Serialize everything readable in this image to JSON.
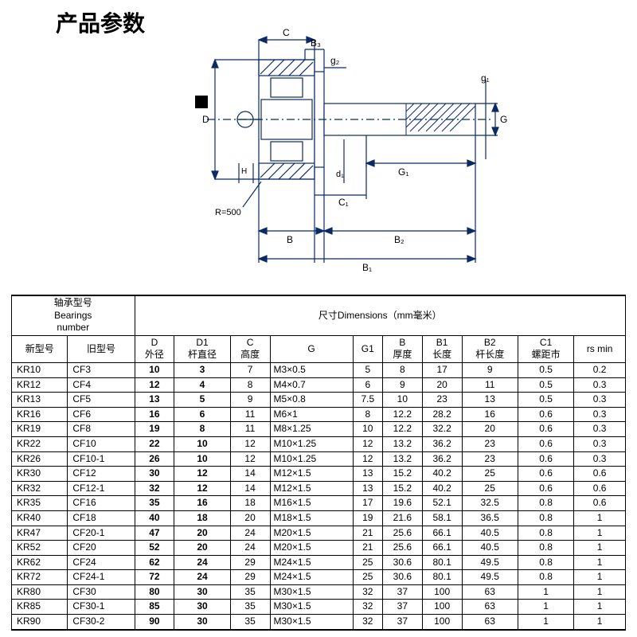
{
  "title": "产品参数",
  "diagram": {
    "labels": {
      "C": "C",
      "B3": "B₃",
      "g2": "g₂",
      "g1": "g₁",
      "D": "D",
      "H": "H",
      "R": "R=500",
      "d1": "d₁",
      "G": "G",
      "G1": "G₁",
      "C1": "C₁",
      "B": "B",
      "B2": "B₂",
      "Bdot": "B₁"
    },
    "line_color": "#0b2a66",
    "bg_color": "#ffffff"
  },
  "table": {
    "header": {
      "bearings_top": "轴承型号",
      "bearings_mid": "Bearings",
      "bearings_bot": "number",
      "dimensions": "尺寸Dimensions（mm毫米）",
      "new_model": "新型号",
      "old_model": "旧型号",
      "cols": [
        {
          "k": "D",
          "t": "D",
          "s": "外径"
        },
        {
          "k": "D1",
          "t": "D1",
          "s": "杆直径"
        },
        {
          "k": "C",
          "t": "C",
          "s": "高度"
        },
        {
          "k": "G",
          "t": "G",
          "s": ""
        },
        {
          "k": "G1",
          "t": "G1",
          "s": ""
        },
        {
          "k": "B",
          "t": "B",
          "s": "厚度"
        },
        {
          "k": "B1",
          "t": "B1",
          "s": "长度"
        },
        {
          "k": "B2",
          "t": "B2",
          "s": "杆长度"
        },
        {
          "k": "C1",
          "t": "C1",
          "s": "螺距市"
        },
        {
          "k": "rs",
          "t": "rs min",
          "s": ""
        }
      ]
    },
    "rows": [
      {
        "new": "KR10",
        "old": "CF3",
        "D": "10",
        "D1": "3",
        "C": "7",
        "G": "M3×0.5",
        "G1": "5",
        "B": "8",
        "B1": "17",
        "B2": "9",
        "C1": "0.5",
        "rs": "0.2"
      },
      {
        "new": "KR12",
        "old": "CF4",
        "D": "12",
        "D1": "4",
        "C": "8",
        "G": "M4×0.7",
        "G1": "6",
        "B": "9",
        "B1": "20",
        "B2": "11",
        "C1": "0.5",
        "rs": "0.3"
      },
      {
        "new": "KR13",
        "old": "CF5",
        "D": "13",
        "D1": "5",
        "C": "9",
        "G": "M5×0.8",
        "G1": "7.5",
        "B": "10",
        "B1": "23",
        "B2": "13",
        "C1": "0.5",
        "rs": "0.3"
      },
      {
        "new": "KR16",
        "old": "CF6",
        "D": "16",
        "D1": "6",
        "C": "11",
        "G": "M6×1",
        "G1": "8",
        "B": "12.2",
        "B1": "28.2",
        "B2": "16",
        "C1": "0.6",
        "rs": "0.3"
      },
      {
        "new": "KR19",
        "old": "CF8",
        "D": "19",
        "D1": "8",
        "C": "11",
        "G": "M8×1.25",
        "G1": "10",
        "B": "12.2",
        "B1": "32.2",
        "B2": "20",
        "C1": "0.6",
        "rs": "0.3"
      },
      {
        "new": "KR22",
        "old": "CF10",
        "D": "22",
        "D1": "10",
        "C": "12",
        "G": "M10×1.25",
        "G1": "12",
        "B": "13.2",
        "B1": "36.2",
        "B2": "23",
        "C1": "0.6",
        "rs": "0.3"
      },
      {
        "new": "KR26",
        "old": "CF10-1",
        "D": "26",
        "D1": "10",
        "C": "12",
        "G": "M10×1.25",
        "G1": "12",
        "B": "13.2",
        "B1": "36.2",
        "B2": "23",
        "C1": "0.6",
        "rs": "0.3"
      },
      {
        "new": "KR30",
        "old": "CF12",
        "D": "30",
        "D1": "12",
        "C": "14",
        "G": "M12×1.5",
        "G1": "13",
        "B": "15.2",
        "B1": "40.2",
        "B2": "25",
        "C1": "0.6",
        "rs": "0.6"
      },
      {
        "new": "KR32",
        "old": "CF12-1",
        "D": "32",
        "D1": "12",
        "C": "14",
        "G": "M12×1.5",
        "G1": "13",
        "B": "15.2",
        "B1": "40.2",
        "B2": "25",
        "C1": "0.6",
        "rs": "0.6"
      },
      {
        "new": "KR35",
        "old": "CF16",
        "D": "35",
        "D1": "16",
        "C": "18",
        "G": "M16×1.5",
        "G1": "17",
        "B": "19.6",
        "B1": "52.1",
        "B2": "32.5",
        "C1": "0.8",
        "rs": "0.6"
      },
      {
        "new": "KR40",
        "old": "CF18",
        "D": "40",
        "D1": "18",
        "C": "20",
        "G": "M18×1.5",
        "G1": "19",
        "B": "21.6",
        "B1": "58.1",
        "B2": "36.5",
        "C1": "0.8",
        "rs": "1"
      },
      {
        "new": "KR47",
        "old": "CF20-1",
        "D": "47",
        "D1": "20",
        "C": "24",
        "G": "M20×1.5",
        "G1": "21",
        "B": "25.6",
        "B1": "66.1",
        "B2": "40.5",
        "C1": "0.8",
        "rs": "1"
      },
      {
        "new": "KR52",
        "old": "CF20",
        "D": "52",
        "D1": "20",
        "C": "24",
        "G": "M20×1.5",
        "G1": "21",
        "B": "25.6",
        "B1": "66.1",
        "B2": "40.5",
        "C1": "0.8",
        "rs": "1"
      },
      {
        "new": "KR62",
        "old": "CF24",
        "D": "62",
        "D1": "24",
        "C": "29",
        "G": "M24×1.5",
        "G1": "25",
        "B": "30.6",
        "B1": "80.1",
        "B2": "49.5",
        "C1": "0.8",
        "rs": "1"
      },
      {
        "new": "KR72",
        "old": "CF24-1",
        "D": "72",
        "D1": "24",
        "C": "29",
        "G": "M24×1.5",
        "G1": "25",
        "B": "30.6",
        "B1": "80.1",
        "B2": "49.5",
        "C1": "0.8",
        "rs": "1"
      },
      {
        "new": "KR80",
        "old": "CF30",
        "D": "80",
        "D1": "30",
        "C": "35",
        "G": "M30×1.5",
        "G1": "32",
        "B": "37",
        "B1": "100",
        "B2": "63",
        "C1": "1",
        "rs": "1"
      },
      {
        "new": "KR85",
        "old": "CF30-1",
        "D": "85",
        "D1": "30",
        "C": "35",
        "G": "M30×1.5",
        "G1": "32",
        "B": "37",
        "B1": "100",
        "B2": "63",
        "C1": "1",
        "rs": "1"
      },
      {
        "new": "KR90",
        "old": "CF30-2",
        "D": "90",
        "D1": "30",
        "C": "35",
        "G": "M30×1.5",
        "G1": "32",
        "B": "37",
        "B1": "100",
        "B2": "63",
        "C1": "1",
        "rs": "1"
      }
    ]
  }
}
